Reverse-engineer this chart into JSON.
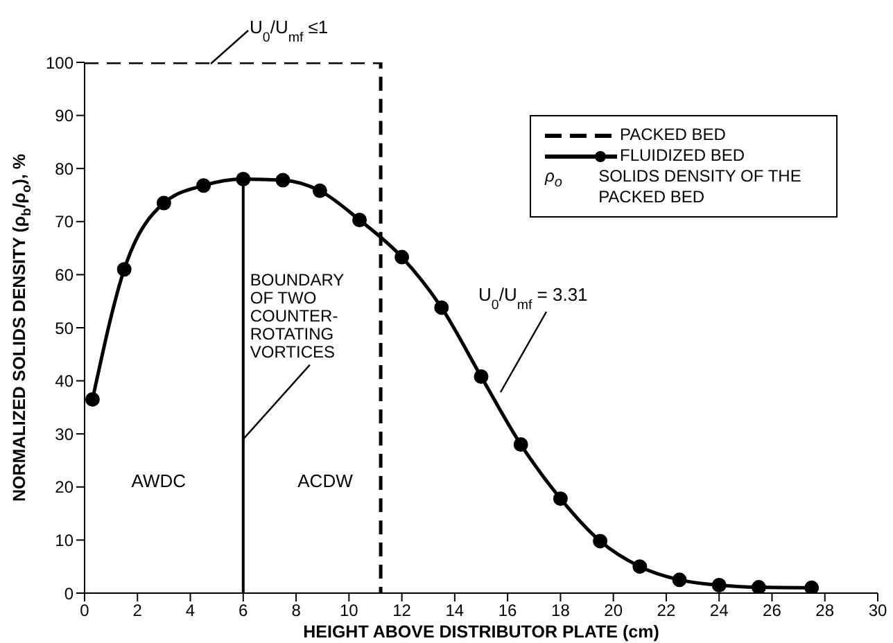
{
  "chart_data": {
    "type": "line",
    "xlabel": "HEIGHT ABOVE DISTRIBUTOR PLATE (cm)",
    "ylabel": "NORMALIZED SOLIDS DENSITY (ρ$_{b}$/ρ$_{o}$), %",
    "xlim": [
      0,
      30
    ],
    "xticks": [
      0,
      2,
      4,
      6,
      8,
      10,
      12,
      14,
      16,
      18,
      20,
      22,
      24,
      26,
      28,
      30
    ],
    "ylim": [
      0,
      100
    ],
    "yticks": [
      0,
      10,
      20,
      30,
      40,
      50,
      60,
      70,
      80,
      90,
      100
    ],
    "grid": false,
    "legend": "top right",
    "series": [
      {
        "name": "PACKED BED",
        "color": "#000000",
        "line_style": "dashed",
        "marker": "none",
        "x": [
          0,
          11.2,
          11.2
        ],
        "values": [
          100,
          100,
          0
        ]
      },
      {
        "name": "FLUIDIZED BED",
        "color": "#000000",
        "line_style": "solid",
        "marker": "circle",
        "x": [
          0.3,
          1.5,
          3.0,
          4.5,
          6.0,
          7.5,
          8.9,
          10.4,
          12.0,
          13.5,
          15.0,
          16.5,
          18.0,
          19.5,
          21.0,
          22.5,
          24.0,
          25.5,
          27.5
        ],
        "values": [
          36.5,
          61,
          73.5,
          76.8,
          78,
          77.8,
          75.8,
          70.3,
          63.3,
          53.8,
          40.8,
          28,
          17.8,
          9.8,
          5,
          2.5,
          1.5,
          1.1,
          1.0
        ]
      }
    ],
    "ref_lines": [
      {
        "axis": "x",
        "value": 6,
        "label": "BOUNDARY OF TWO COUNTER-ROTATING VORTICES",
        "color": "#000000",
        "line_style": "solid"
      }
    ],
    "annotations": [
      "U$_{0}$/U$_{mf}$ ≤1",
      "U$_{0}$/U$_{mf}$ = 3.31",
      "AWDC",
      "ACDW",
      "ρ$_{o}$ SOLIDS DENSITY OF THE PACKED BED"
    ]
  }
}
